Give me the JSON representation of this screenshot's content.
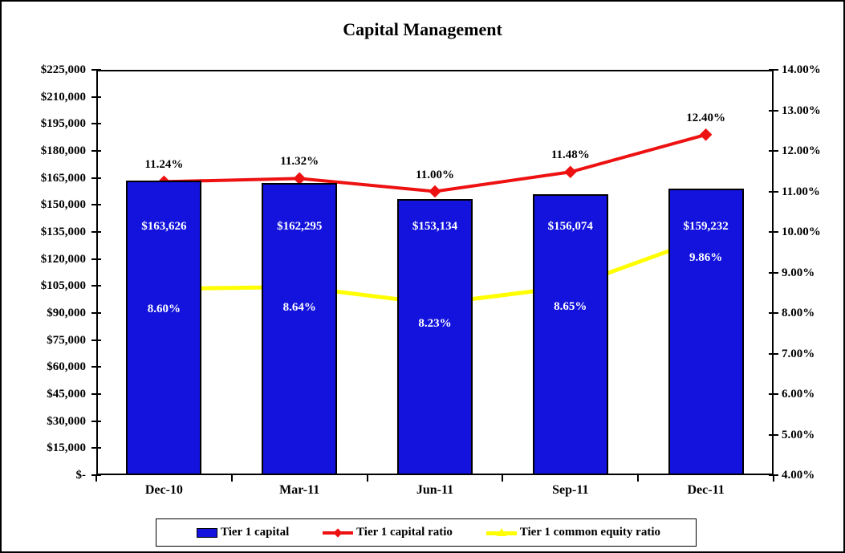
{
  "chart_data": {
    "type": "combo",
    "title": "Capital Management",
    "categories": [
      "Dec-10",
      "Mar-11",
      "Jun-11",
      "Sep-11",
      "Dec-11"
    ],
    "series": [
      {
        "name": "Tier 1 capital",
        "type": "bar",
        "axis": "left",
        "color": "#1313DD",
        "values": [
          163626,
          162295,
          153134,
          156074,
          159232
        ],
        "labels": [
          "$163,626",
          "$162,295",
          "$153,134",
          "$156,074",
          "$159,232"
        ],
        "label_color": "#FFFFFF"
      },
      {
        "name": "Tier 1 capital ratio",
        "type": "line",
        "marker": "diamond",
        "axis": "right",
        "color": "#EE1111",
        "values": [
          11.24,
          11.32,
          11.0,
          11.48,
          12.4
        ],
        "labels": [
          "11.24%",
          "11.32%",
          "11.00%",
          "11.48%",
          "12.40%"
        ],
        "label_color": "#000000",
        "label_side": "above"
      },
      {
        "name": "Tier 1 common equity ratio",
        "type": "line",
        "marker": "triangle",
        "axis": "right",
        "color": "#FFFF00",
        "values": [
          8.6,
          8.64,
          8.23,
          8.65,
          9.86
        ],
        "labels": [
          "8.60%",
          "8.64%",
          "8.23%",
          "8.65%",
          "9.86%"
        ],
        "label_color": "#FFFFFF",
        "label_side": "below"
      }
    ],
    "left_axis": {
      "min": 0,
      "max": 225000,
      "step": 15000,
      "tick_labels": [
        "$225,000",
        "$210,000",
        "$195,000",
        "$180,000",
        "$165,000",
        "$150,000",
        "$135,000",
        "$120,000",
        "$105,000",
        "$90,000",
        "$75,000",
        "$60,000",
        "$45,000",
        "$30,000",
        "$15,000",
        "$-"
      ]
    },
    "right_axis": {
      "min": 4,
      "max": 14,
      "step": 1,
      "tick_labels": [
        "14.00%",
        "13.00%",
        "12.00%",
        "11.00%",
        "10.00%",
        "9.00%",
        "8.00%",
        "7.00%",
        "6.00%",
        "5.00%",
        "4.00%"
      ]
    },
    "legend": {
      "position": "bottom",
      "items": [
        "Tier 1 capital",
        "Tier 1 capital ratio",
        "Tier 1 common equity ratio"
      ]
    },
    "grid": "off"
  },
  "colors": {
    "bar_blue": "#1313DD",
    "line_red": "#EE1111",
    "line_yellow": "#FFFF00",
    "axis": "#000000",
    "background": "#FFFFFF"
  }
}
